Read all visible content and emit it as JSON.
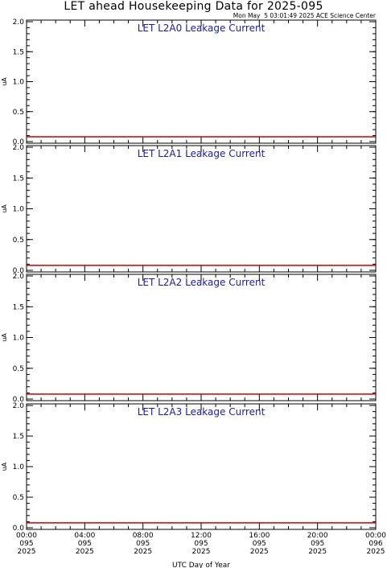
{
  "title": "LET ahead Housekeeping Data for 2025-095",
  "subtitle": "Mon May  5 03:01:49 2025 ACE Science Center",
  "colors": {
    "axis": "#000000",
    "panel_title": "#1a1aa6",
    "series": "#cc0000"
  },
  "chart_data": [
    {
      "type": "line",
      "title": "LET L2A0 Leakage Current",
      "ylabel": "uA",
      "ylim": [
        0.0,
        2.0
      ],
      "yticks": [
        "0.0",
        "0.5",
        "1.0",
        "1.5",
        "2.0"
      ],
      "x": [
        0,
        24
      ],
      "values": [
        0.08,
        0.08
      ]
    },
    {
      "type": "line",
      "title": "LET L2A1 Leakage Current",
      "ylabel": "uA",
      "ylim": [
        0.0,
        2.0
      ],
      "yticks": [
        "0.0",
        "0.5",
        "1.0",
        "1.5",
        "2.0"
      ],
      "x": [
        0,
        24
      ],
      "values": [
        0.08,
        0.08
      ]
    },
    {
      "type": "line",
      "title": "LET L2A2 Leakage Current",
      "ylabel": "uA",
      "ylim": [
        0.0,
        2.0
      ],
      "yticks": [
        "0.0",
        "0.5",
        "1.0",
        "1.5",
        "2.0"
      ],
      "x": [
        0,
        24
      ],
      "values": [
        0.08,
        0.08
      ]
    },
    {
      "type": "line",
      "title": "LET L2A3 Leakage Current",
      "ylabel": "uA",
      "ylim": [
        0.0,
        2.0
      ],
      "yticks": [
        "0.0",
        "0.5",
        "1.0",
        "1.5",
        "2.0"
      ],
      "x": [
        0,
        24
      ],
      "values": [
        0.08,
        0.08
      ]
    }
  ],
  "xaxis": {
    "label": "UTC Day of Year",
    "range_hours": [
      0,
      24
    ],
    "ticks": [
      {
        "hour": 0,
        "time": "00:00",
        "doy": "095",
        "year": "2025"
      },
      {
        "hour": 4,
        "time": "04:00",
        "doy": "095",
        "year": "2025"
      },
      {
        "hour": 8,
        "time": "08:00",
        "doy": "095",
        "year": "2025"
      },
      {
        "hour": 12,
        "time": "12:00",
        "doy": "095",
        "year": "2025"
      },
      {
        "hour": 16,
        "time": "16:00",
        "doy": "095",
        "year": "2025"
      },
      {
        "hour": 20,
        "time": "20:00",
        "doy": "095",
        "year": "2025"
      },
      {
        "hour": 24,
        "time": "00:00",
        "doy": "096",
        "year": "2025"
      }
    ]
  }
}
